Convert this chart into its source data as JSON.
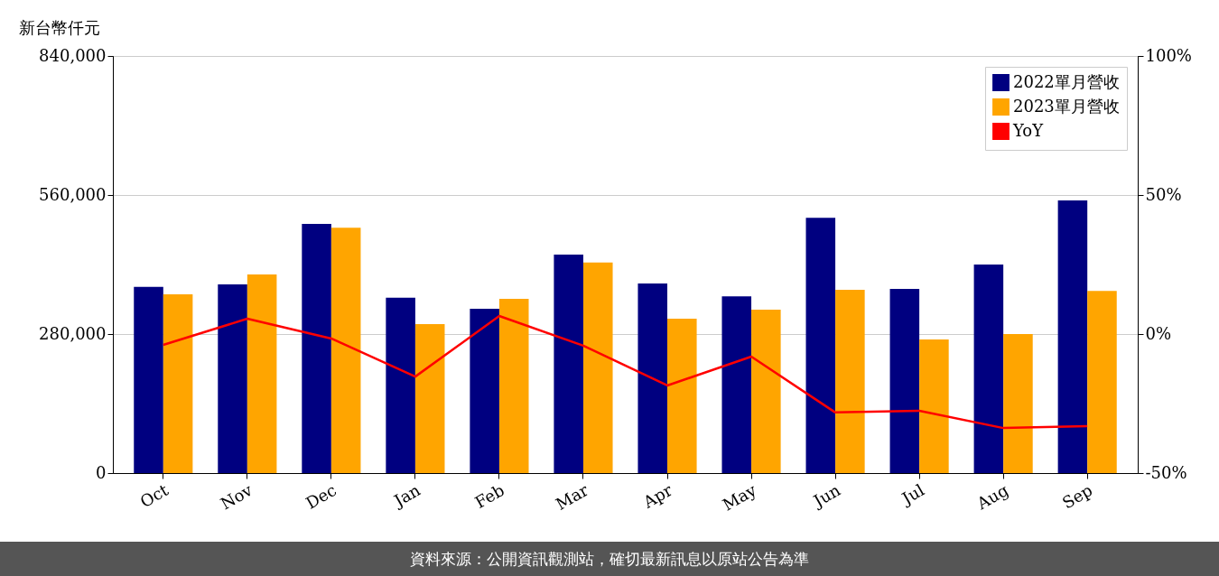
{
  "chart_data": {
    "type": "bar",
    "ylabel": "新台幣仟元",
    "categories": [
      "Oct",
      "Nov",
      "Dec",
      "Jan",
      "Feb",
      "Mar",
      "Apr",
      "May",
      "Jun",
      "Jul",
      "Aug",
      "Sep"
    ],
    "series": [
      {
        "name": "2022單月營收",
        "color": "#000080",
        "values": [
          375000,
          380000,
          502000,
          353000,
          331000,
          440000,
          382000,
          356000,
          514000,
          371000,
          420000,
          549000
        ]
      },
      {
        "name": "2023單月營收",
        "color": "#ffa500",
        "values": [
          360000,
          400000,
          494000,
          300000,
          351000,
          424000,
          311000,
          329000,
          369000,
          269000,
          280000,
          367000
        ]
      },
      {
        "name": "YoY",
        "type": "line",
        "axis": "y2",
        "color": "#ff0000",
        "values": [
          -3.9,
          5.5,
          -1.6,
          -15.3,
          6.5,
          -4.2,
          -18.5,
          -8.1,
          -28.2,
          -27.6,
          -33.8,
          -33.1
        ]
      }
    ],
    "ylim": [
      0,
      840000
    ],
    "yticks": [
      0,
      {
        "value": 280000,
        "label": "280,000"
      },
      {
        "value": 560000,
        "label": "560,000"
      },
      {
        "value": 840000,
        "label": "840,000"
      }
    ],
    "y2lim": [
      -50,
      100
    ],
    "y2ticks": [
      {
        "value": -50,
        "label": "-50%"
      },
      {
        "value": 0,
        "label": "0%"
      },
      {
        "value": 50,
        "label": "50%"
      },
      {
        "value": 100,
        "label": "100%"
      }
    ],
    "grid": "y",
    "legend": "top right",
    "annotations": [
      "資料來源：公開資訊觀測站，確切最新訊息以原站公告為準"
    ]
  }
}
